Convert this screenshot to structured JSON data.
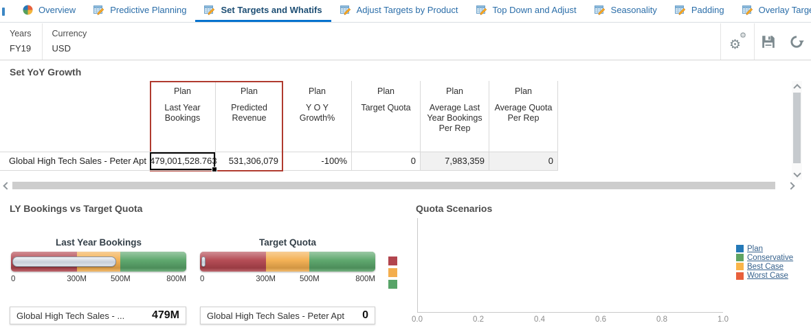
{
  "tabs": [
    {
      "label": "Overview",
      "icon": "pie-chart-icon",
      "active": false
    },
    {
      "label": "Predictive Planning",
      "icon": "sheet-pencil-icon",
      "active": false
    },
    {
      "label": "Set Targets and Whatifs",
      "icon": "sheet-pencil-icon",
      "active": true
    },
    {
      "label": "Adjust Targets by Product",
      "icon": "sheet-pencil-icon",
      "active": false
    },
    {
      "label": "Top Down and Adjust",
      "icon": "sheet-pencil-icon",
      "active": false
    },
    {
      "label": "Seasonality",
      "icon": "sheet-pencil-icon",
      "active": false
    },
    {
      "label": "Padding",
      "icon": "sheet-pencil-icon",
      "active": false
    },
    {
      "label": "Overlay Targets",
      "icon": "sheet-pencil-icon",
      "active": false
    }
  ],
  "pov": {
    "fields": [
      {
        "label": "Years",
        "value": "FY19"
      },
      {
        "label": "Currency",
        "value": "USD"
      }
    ],
    "actions": [
      {
        "name": "settings",
        "icon": "gears-icon",
        "glyph": "⚙"
      },
      {
        "name": "save",
        "icon": "save-icon"
      },
      {
        "name": "refresh",
        "icon": "refresh-icon"
      }
    ]
  },
  "grid": {
    "title": "Set YoY Growth",
    "row_header": "Global High Tech Sales - Peter Apt",
    "columns": [
      {
        "scenario": "Plan",
        "measure": "Last Year Bookings"
      },
      {
        "scenario": "Plan",
        "measure": "Predicted Revenue"
      },
      {
        "scenario": "Plan",
        "measure": "Y O Y Growth%"
      },
      {
        "scenario": "Plan",
        "measure": "Target Quota"
      },
      {
        "scenario": "Plan",
        "measure": "Average Last Year Bookings Per Rep"
      },
      {
        "scenario": "Plan",
        "measure": "Average Quota Per Rep"
      }
    ],
    "values": [
      "479,001,528.763",
      "531,306,079",
      "-100%",
      "0",
      "7,983,359",
      "0"
    ],
    "highlight_color": "#b03a2e"
  },
  "sections": {
    "left_title": "LY Bookings vs Target Quota"
  },
  "chart_data": [
    {
      "type": "bullet",
      "title": "Last Year Bookings",
      "row_label": "Global High Tech Sales - ...",
      "display_value": "479M",
      "value": 479001528.763,
      "xlim": [
        0,
        800000000
      ],
      "ticks": [
        "0",
        "300M",
        "500M",
        "800M"
      ],
      "bands": [
        {
          "to": 300000000,
          "color": "#b2454e"
        },
        {
          "to": 500000000,
          "color": "#f3ae4e"
        },
        {
          "to": 800000000,
          "color": "#58a468"
        }
      ]
    },
    {
      "type": "bullet",
      "title": "Target Quota",
      "row_label": "Global High Tech Sales - Peter Apt",
      "display_value": "0",
      "value": 0,
      "xlim": [
        0,
        800000000
      ],
      "ticks": [
        "0",
        "300M",
        "500M",
        "800M"
      ],
      "bands": [
        {
          "to": 300000000,
          "color": "#b2454e"
        },
        {
          "to": 500000000,
          "color": "#f3ae4e"
        },
        {
          "to": 800000000,
          "color": "#58a468"
        }
      ]
    },
    {
      "type": "scatter",
      "title": "Quota Scenarios",
      "xlim": [
        0,
        1
      ],
      "x_ticks": [
        "0.0",
        "0.2",
        "0.4",
        "0.6",
        "0.8",
        "1.0"
      ],
      "legend_position": "right",
      "series": [
        {
          "name": "Plan",
          "color": "#2479b8",
          "points": []
        },
        {
          "name": "Conservative",
          "color": "#5fa463",
          "points": []
        },
        {
          "name": "Best Case",
          "color": "#f9b54a",
          "points": []
        },
        {
          "name": "Worst Case",
          "color": "#e8603c",
          "points": []
        }
      ]
    }
  ]
}
